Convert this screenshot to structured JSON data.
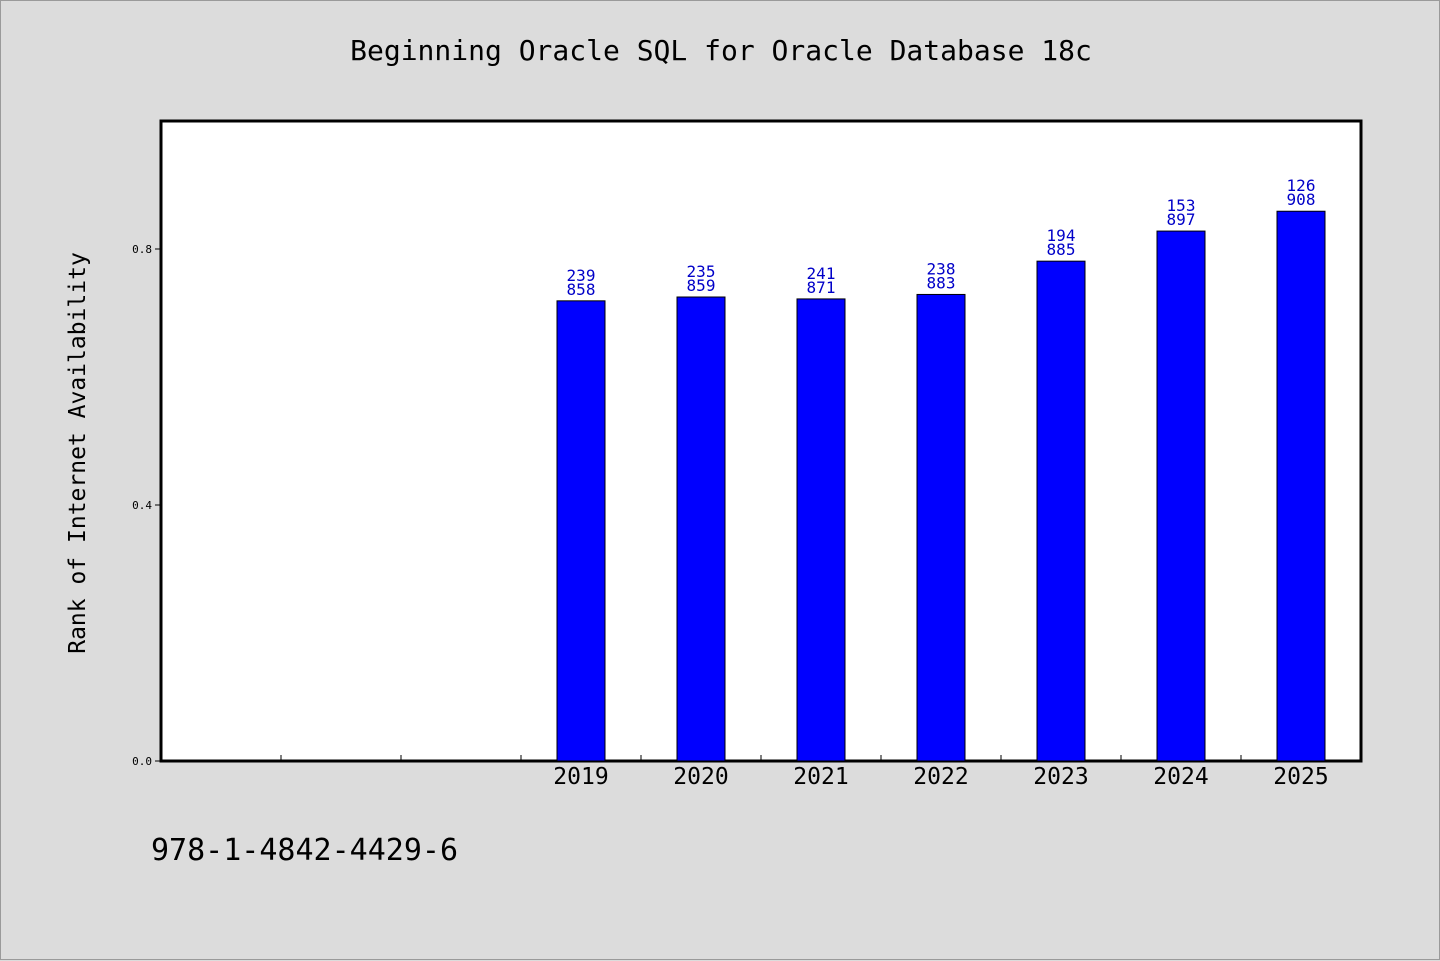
{
  "chart_data": {
    "type": "bar",
    "title": "Beginning Oracle SQL for Oracle Database 18c",
    "ylabel": "Rank of Internet Availability",
    "xlabel": "",
    "categories": [
      "",
      "",
      "",
      "2019",
      "2020",
      "2021",
      "2022",
      "2023",
      "2024",
      "2025"
    ],
    "values": [
      null,
      null,
      null,
      0.719,
      0.725,
      0.722,
      0.729,
      0.781,
      0.828,
      0.859
    ],
    "labels": [
      null,
      null,
      null,
      [
        "239",
        "858"
      ],
      [
        "235",
        "859"
      ],
      [
        "241",
        "871"
      ],
      [
        "238",
        "883"
      ],
      [
        "194",
        "885"
      ],
      [
        "153",
        "897"
      ],
      [
        "126",
        "908"
      ]
    ],
    "y_ticks": [
      0.0,
      0.4,
      0.8
    ],
    "y_tick_labels": [
      "0.0",
      "0.4",
      "0.8"
    ],
    "ylim": [
      0,
      1.0
    ],
    "grid": false,
    "colors": {
      "bar": "#0000ff",
      "label": "#0000c8",
      "background": "#dcdcdc",
      "plot": "#ffffff"
    }
  },
  "footer": {
    "isbn": "978-1-4842-4429-6"
  }
}
